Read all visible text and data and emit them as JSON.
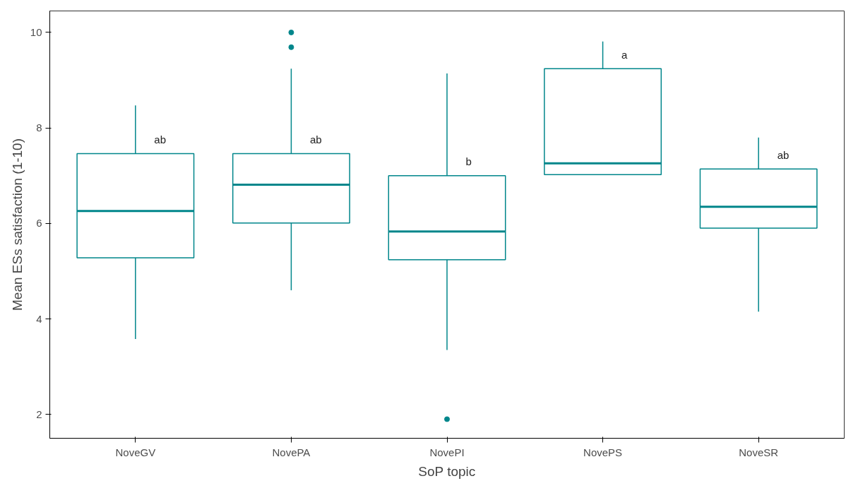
{
  "chart_data": {
    "type": "box",
    "xlabel": "SoP topic",
    "ylabel": "Mean ESs satisfaction (1-10)",
    "categories": [
      "NoveGV",
      "NovePA",
      "NovePI",
      "NovePS",
      "NoveSR"
    ],
    "boxes": [
      {
        "low": 3.58,
        "q1": 5.28,
        "median": 6.26,
        "q3": 7.46,
        "high": 8.47
      },
      {
        "low": 4.6,
        "q1": 6.01,
        "median": 6.81,
        "q3": 7.46,
        "high": 9.24,
        "outliers": [
          9.69,
          10.0
        ]
      },
      {
        "low": 3.35,
        "q1": 5.24,
        "median": 5.83,
        "q3": 7.0,
        "high": 9.14,
        "outliers": [
          1.9
        ]
      },
      {
        "low": 7.02,
        "q1": 7.02,
        "median": 7.26,
        "q3": 9.24,
        "high": 9.81
      },
      {
        "low": 4.15,
        "q1": 5.9,
        "median": 6.35,
        "q3": 7.14,
        "high": 7.8
      }
    ],
    "color": "#00868b",
    "ylim": [
      1.5,
      10.45
    ],
    "yticks": [
      2,
      4,
      6,
      8,
      10
    ],
    "grid": false,
    "annotations": [
      {
        "text": "ab",
        "x": "NoveGV",
        "y": 7.76
      },
      {
        "text": "ab",
        "x": "NovePA",
        "y": 7.76
      },
      {
        "text": "b",
        "x": "NovePI",
        "y": 7.3
      },
      {
        "text": "a",
        "x": "NovePS",
        "y": 9.54
      },
      {
        "text": "ab",
        "x": "NoveSR",
        "y": 7.43
      }
    ]
  }
}
